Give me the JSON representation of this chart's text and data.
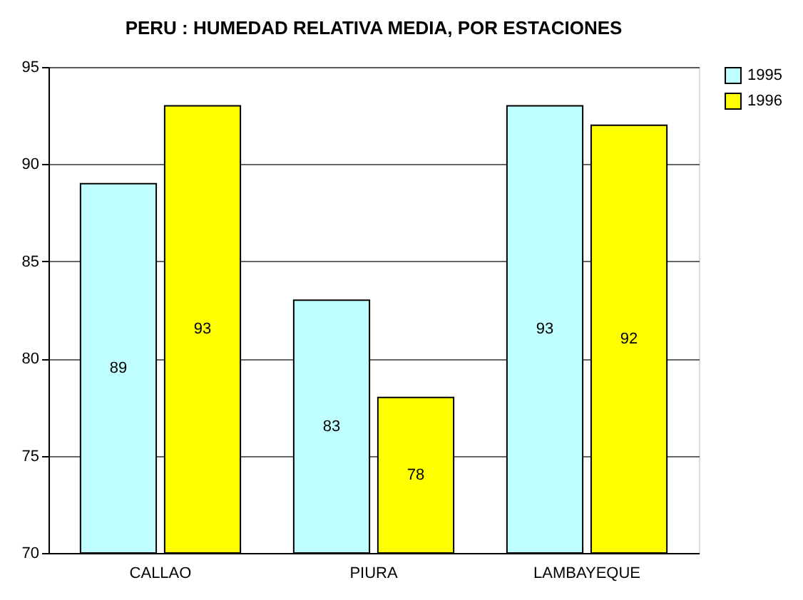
{
  "chart_data": {
    "type": "bar",
    "title": "PERU : HUMEDAD RELATIVA MEDIA, POR ESTACIONES",
    "categories": [
      "CALLAO",
      "PIURA",
      "LAMBAYEQUE"
    ],
    "series": [
      {
        "name": "1995",
        "color": "#c0ffff",
        "values": [
          89,
          83,
          93
        ]
      },
      {
        "name": "1996",
        "color": "#ffff00",
        "values": [
          93,
          78,
          92
        ]
      }
    ],
    "ylim": [
      70,
      95
    ],
    "yticks": [
      70,
      75,
      80,
      85,
      90,
      95
    ],
    "grid": "y",
    "legend": "right",
    "data_labels": true
  }
}
